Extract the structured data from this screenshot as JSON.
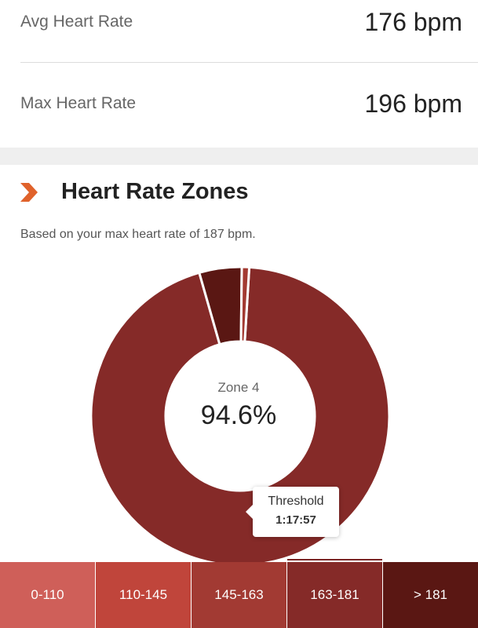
{
  "stats": [
    {
      "label": "Avg Heart Rate",
      "value": "176 bpm"
    },
    {
      "label": "Max Heart Rate",
      "value": "196 bpm"
    }
  ],
  "section": {
    "title": "Heart Rate Zones",
    "subtitle": "Based on your max heart rate of 187 bpm.",
    "icon": "chevron-right-icon",
    "accent_color": "#e0622b"
  },
  "donut": {
    "center_label": "Zone 4",
    "center_value": "94.6%",
    "segments": [
      {
        "zone": "Zone 4",
        "percent": 94.6,
        "color": "#852a28"
      },
      {
        "zone": "Zone 5",
        "percent": 4.6,
        "color": "#5a1713"
      },
      {
        "zone": "Zone 3",
        "percent": 0.8,
        "color": "#a33a32"
      }
    ]
  },
  "tooltip": {
    "label": "Threshold",
    "time": "1:17:57"
  },
  "zones": [
    {
      "label": "0-110",
      "color": "#cf5f59"
    },
    {
      "label": "110-145",
      "color": "#c0453b"
    },
    {
      "label": "145-163",
      "color": "#a23a33"
    },
    {
      "label": "163-181",
      "color": "#852a28",
      "active": true
    },
    {
      "label": "> 181",
      "color": "#5a1713"
    }
  ]
}
